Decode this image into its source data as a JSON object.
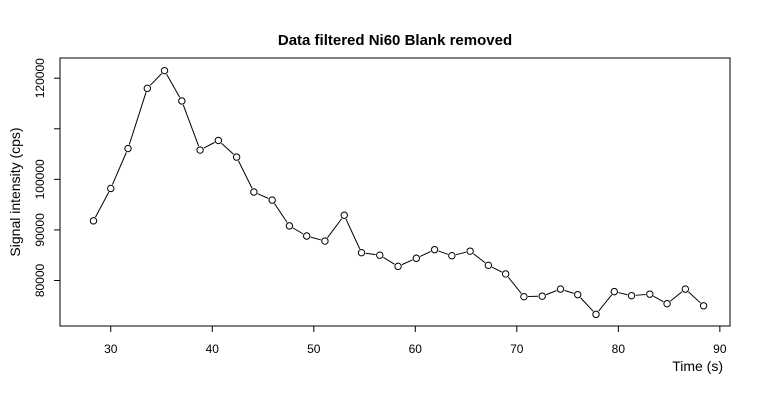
{
  "chart_data": {
    "type": "line",
    "title": "Data filtered Ni60 Blank removed",
    "xlabel": "Time (s)",
    "ylabel": "Signal intensity (cps)",
    "xlim": [
      25,
      91
    ],
    "ylim": [
      71000,
      124000
    ],
    "x_ticks": [
      30,
      40,
      50,
      60,
      70,
      80,
      90
    ],
    "y_ticks": [
      80000,
      90000,
      100000,
      110000,
      120000
    ],
    "y_tick_labels": [
      "80000",
      "90000",
      "100000",
      "",
      "120000"
    ],
    "grid": false,
    "legend": "none",
    "series": [
      {
        "x": [
          28.3,
          30.0,
          31.7,
          33.6,
          35.3,
          37.0,
          38.8,
          40.6,
          42.4,
          44.1,
          45.9,
          47.6,
          49.3,
          51.1,
          53.0,
          54.7,
          56.5,
          58.3,
          60.1,
          61.9,
          63.6,
          65.4,
          67.2,
          68.9,
          70.7,
          72.5,
          74.3,
          76.0,
          77.8,
          79.6,
          81.3,
          83.1,
          84.8,
          86.6,
          88.4
        ],
        "y": [
          91800,
          98200,
          106100,
          118000,
          121500,
          115500,
          105800,
          107700,
          104400,
          97500,
          95900,
          90800,
          88800,
          87800,
          92900,
          85500,
          85000,
          82800,
          84400,
          86100,
          84900,
          85800,
          83000,
          81300,
          76800,
          76900,
          78300,
          77200,
          73300,
          77800,
          77000,
          77300,
          75400,
          78300,
          75000
        ]
      }
    ]
  }
}
